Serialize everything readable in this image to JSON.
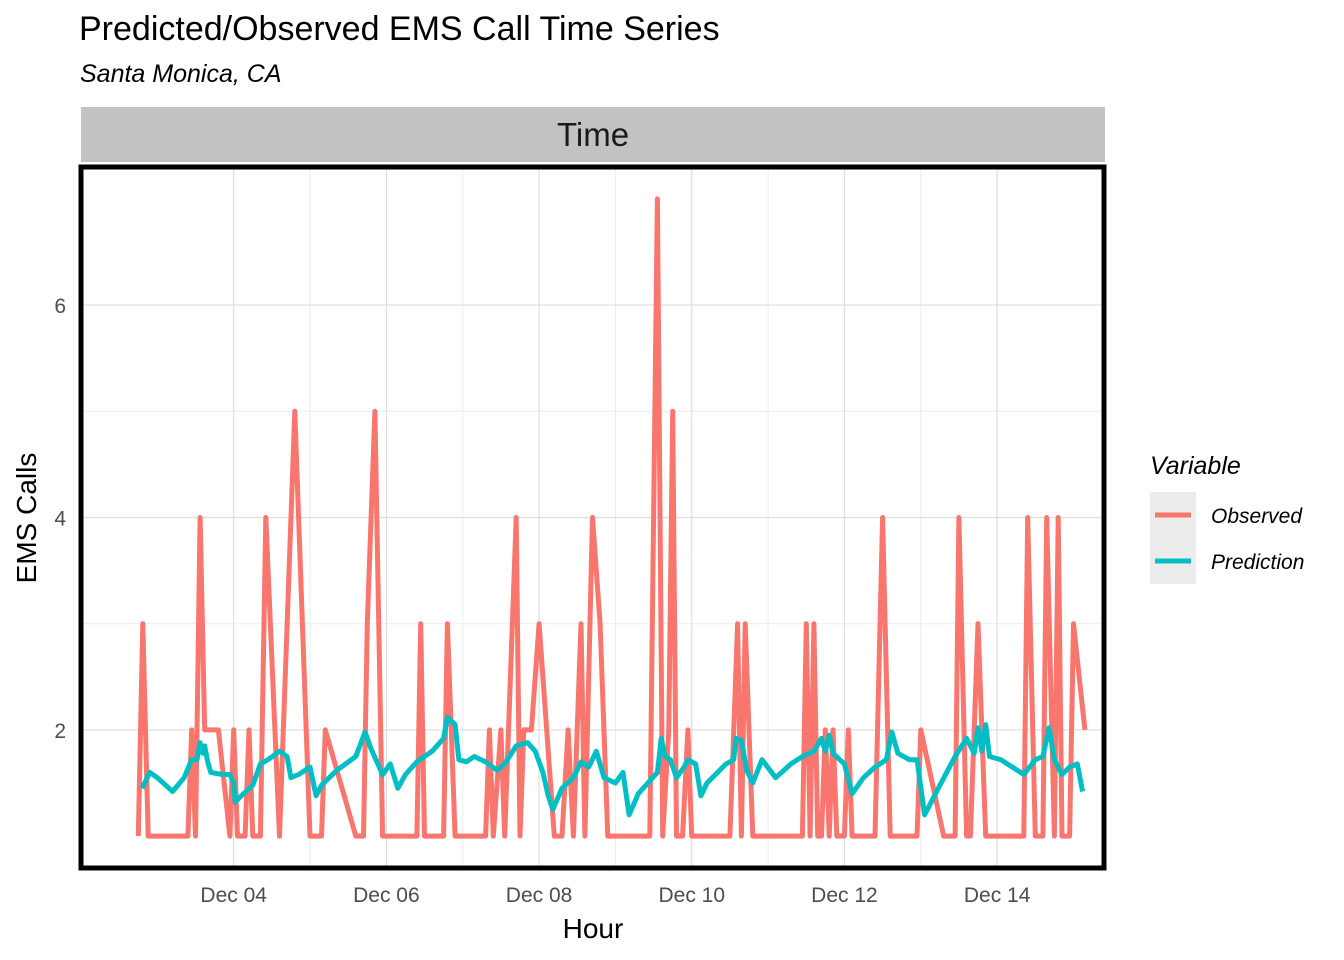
{
  "chart_data": {
    "type": "line",
    "title": "Predicted/Observed EMS Call Time Series",
    "subtitle": "Santa Monica, CA",
    "facet_label": "Time",
    "xlabel": "Hour",
    "ylabel": "EMS Calls",
    "x_ticks": [
      {
        "x": 4,
        "label": "Dec 04"
      },
      {
        "x": 6,
        "label": "Dec 06"
      },
      {
        "x": 8,
        "label": "Dec 08"
      },
      {
        "x": 10,
        "label": "Dec 10"
      },
      {
        "x": 12,
        "label": "Dec 12"
      },
      {
        "x": 14,
        "label": "Dec 14"
      }
    ],
    "y_ticks": [
      2,
      4,
      6
    ],
    "xlim": [
      2.0,
      15.4
    ],
    "ylim": [
      0.7,
      7.3
    ],
    "grid": true,
    "legend": {
      "title": "Variable",
      "position": "right"
    },
    "series": [
      {
        "name": "Observed",
        "color": "#F8766D",
        "points": [
          [
            2.75,
            1
          ],
          [
            2.81,
            3
          ],
          [
            2.88,
            1
          ],
          [
            3.4,
            1
          ],
          [
            3.45,
            2
          ],
          [
            3.5,
            1
          ],
          [
            3.56,
            4
          ],
          [
            3.62,
            2
          ],
          [
            3.8,
            2
          ],
          [
            3.95,
            1
          ],
          [
            4.0,
            2
          ],
          [
            4.05,
            1
          ],
          [
            4.15,
            1
          ],
          [
            4.2,
            2
          ],
          [
            4.25,
            1
          ],
          [
            4.35,
            1
          ],
          [
            4.42,
            4
          ],
          [
            4.6,
            1
          ],
          [
            4.8,
            5
          ],
          [
            5.0,
            1
          ],
          [
            5.15,
            1
          ],
          [
            5.2,
            2
          ],
          [
            5.6,
            1
          ],
          [
            5.7,
            1
          ],
          [
            5.75,
            3
          ],
          [
            5.85,
            5
          ],
          [
            5.95,
            1
          ],
          [
            6.4,
            1
          ],
          [
            6.45,
            3
          ],
          [
            6.5,
            1
          ],
          [
            6.75,
            1
          ],
          [
            6.8,
            3
          ],
          [
            6.9,
            1
          ],
          [
            7.2,
            1
          ],
          [
            7.3,
            1
          ],
          [
            7.35,
            2
          ],
          [
            7.4,
            1
          ],
          [
            7.5,
            2
          ],
          [
            7.55,
            1
          ],
          [
            7.7,
            4
          ],
          [
            7.75,
            1
          ],
          [
            7.8,
            2
          ],
          [
            7.9,
            2
          ],
          [
            8.0,
            3
          ],
          [
            8.2,
            1
          ],
          [
            8.3,
            1
          ],
          [
            8.38,
            2
          ],
          [
            8.45,
            1
          ],
          [
            8.55,
            3
          ],
          [
            8.6,
            1
          ],
          [
            8.7,
            4
          ],
          [
            8.8,
            3
          ],
          [
            8.9,
            1
          ],
          [
            9.3,
            1
          ],
          [
            9.45,
            1
          ],
          [
            9.55,
            7
          ],
          [
            9.62,
            1
          ],
          [
            9.7,
            2
          ],
          [
            9.75,
            5
          ],
          [
            9.8,
            1
          ],
          [
            9.88,
            1
          ],
          [
            9.95,
            2
          ],
          [
            10.0,
            1
          ],
          [
            10.5,
            1
          ],
          [
            10.6,
            3
          ],
          [
            10.65,
            1
          ],
          [
            10.7,
            3
          ],
          [
            10.8,
            1
          ],
          [
            11.45,
            1
          ],
          [
            11.5,
            3
          ],
          [
            11.55,
            1
          ],
          [
            11.6,
            3
          ],
          [
            11.65,
            1
          ],
          [
            11.7,
            1
          ],
          [
            11.75,
            2
          ],
          [
            11.8,
            1
          ],
          [
            11.85,
            2
          ],
          [
            11.9,
            1
          ],
          [
            12.0,
            1
          ],
          [
            12.05,
            2
          ],
          [
            12.1,
            1
          ],
          [
            12.4,
            1
          ],
          [
            12.5,
            4
          ],
          [
            12.6,
            1
          ],
          [
            12.95,
            1
          ],
          [
            13.0,
            2
          ],
          [
            13.3,
            1
          ],
          [
            13.45,
            1
          ],
          [
            13.5,
            4
          ],
          [
            13.6,
            1
          ],
          [
            13.65,
            1
          ],
          [
            13.75,
            3
          ],
          [
            13.85,
            1
          ],
          [
            14.35,
            1
          ],
          [
            14.4,
            4
          ],
          [
            14.5,
            1
          ],
          [
            14.6,
            1
          ],
          [
            14.65,
            4
          ],
          [
            14.75,
            1
          ],
          [
            14.8,
            4
          ],
          [
            14.85,
            1
          ],
          [
            14.95,
            1
          ],
          [
            15.0,
            3
          ],
          [
            15.15,
            2
          ]
        ]
      },
      {
        "name": "Prediction",
        "color": "#00BFC4",
        "points": [
          [
            2.8,
            1.45
          ],
          [
            2.9,
            1.6
          ],
          [
            3.0,
            1.55
          ],
          [
            3.2,
            1.42
          ],
          [
            3.35,
            1.55
          ],
          [
            3.45,
            1.72
          ],
          [
            3.52,
            1.72
          ],
          [
            3.56,
            1.88
          ],
          [
            3.6,
            1.78
          ],
          [
            3.62,
            1.85
          ],
          [
            3.66,
            1.7
          ],
          [
            3.7,
            1.6
          ],
          [
            3.85,
            1.58
          ],
          [
            3.95,
            1.58
          ],
          [
            4.0,
            1.5
          ],
          [
            4.02,
            1.32
          ],
          [
            4.1,
            1.38
          ],
          [
            4.25,
            1.48
          ],
          [
            4.35,
            1.68
          ],
          [
            4.45,
            1.72
          ],
          [
            4.6,
            1.8
          ],
          [
            4.7,
            1.75
          ],
          [
            4.75,
            1.55
          ],
          [
            4.85,
            1.58
          ],
          [
            5.0,
            1.65
          ],
          [
            5.08,
            1.38
          ],
          [
            5.15,
            1.48
          ],
          [
            5.35,
            1.62
          ],
          [
            5.6,
            1.75
          ],
          [
            5.72,
            1.98
          ],
          [
            5.8,
            1.82
          ],
          [
            5.95,
            1.58
          ],
          [
            6.05,
            1.68
          ],
          [
            6.15,
            1.45
          ],
          [
            6.25,
            1.58
          ],
          [
            6.4,
            1.7
          ],
          [
            6.6,
            1.8
          ],
          [
            6.75,
            1.92
          ],
          [
            6.8,
            2.12
          ],
          [
            6.9,
            2.05
          ],
          [
            6.95,
            1.72
          ],
          [
            7.05,
            1.7
          ],
          [
            7.15,
            1.75
          ],
          [
            7.3,
            1.7
          ],
          [
            7.45,
            1.62
          ],
          [
            7.55,
            1.68
          ],
          [
            7.7,
            1.85
          ],
          [
            7.85,
            1.88
          ],
          [
            7.95,
            1.8
          ],
          [
            8.05,
            1.6
          ],
          [
            8.12,
            1.38
          ],
          [
            8.18,
            1.25
          ],
          [
            8.3,
            1.45
          ],
          [
            8.45,
            1.55
          ],
          [
            8.55,
            1.7
          ],
          [
            8.65,
            1.65
          ],
          [
            8.75,
            1.8
          ],
          [
            8.85,
            1.55
          ],
          [
            9.0,
            1.5
          ],
          [
            9.1,
            1.6
          ],
          [
            9.18,
            1.2
          ],
          [
            9.3,
            1.4
          ],
          [
            9.55,
            1.6
          ],
          [
            9.6,
            1.92
          ],
          [
            9.65,
            1.75
          ],
          [
            9.72,
            1.72
          ],
          [
            9.8,
            1.55
          ],
          [
            9.9,
            1.65
          ],
          [
            9.95,
            1.72
          ],
          [
            10.05,
            1.68
          ],
          [
            10.12,
            1.38
          ],
          [
            10.2,
            1.5
          ],
          [
            10.45,
            1.68
          ],
          [
            10.55,
            1.72
          ],
          [
            10.58,
            1.92
          ],
          [
            10.65,
            1.9
          ],
          [
            10.72,
            1.62
          ],
          [
            10.8,
            1.5
          ],
          [
            10.92,
            1.72
          ],
          [
            11.1,
            1.55
          ],
          [
            11.3,
            1.68
          ],
          [
            11.45,
            1.75
          ],
          [
            11.6,
            1.8
          ],
          [
            11.7,
            1.92
          ],
          [
            11.75,
            1.8
          ],
          [
            11.8,
            1.95
          ],
          [
            11.85,
            1.78
          ],
          [
            12.0,
            1.68
          ],
          [
            12.1,
            1.4
          ],
          [
            12.25,
            1.55
          ],
          [
            12.4,
            1.65
          ],
          [
            12.55,
            1.72
          ],
          [
            12.62,
            1.98
          ],
          [
            12.7,
            1.78
          ],
          [
            12.85,
            1.72
          ],
          [
            12.95,
            1.72
          ],
          [
            13.05,
            1.2
          ],
          [
            13.25,
            1.48
          ],
          [
            13.45,
            1.75
          ],
          [
            13.6,
            1.92
          ],
          [
            13.7,
            1.78
          ],
          [
            13.75,
            2.02
          ],
          [
            13.8,
            1.8
          ],
          [
            13.85,
            2.05
          ],
          [
            13.9,
            1.75
          ],
          [
            14.05,
            1.72
          ],
          [
            14.2,
            1.65
          ],
          [
            14.35,
            1.58
          ],
          [
            14.5,
            1.72
          ],
          [
            14.6,
            1.75
          ],
          [
            14.68,
            2.02
          ],
          [
            14.75,
            1.72
          ],
          [
            14.85,
            1.58
          ],
          [
            14.95,
            1.65
          ],
          [
            15.05,
            1.68
          ],
          [
            15.12,
            1.42
          ]
        ]
      }
    ]
  }
}
